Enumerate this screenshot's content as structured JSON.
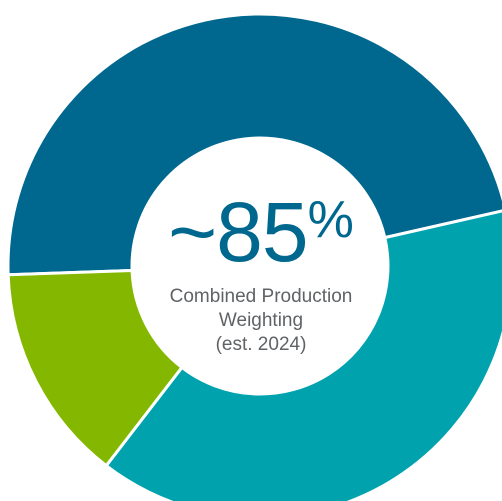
{
  "chart_data": {
    "type": "pie",
    "style": "donut",
    "title": "",
    "categories": [
      "",
      "",
      ""
    ],
    "series": [
      {
        "values": [
          47,
          39,
          14
        ]
      }
    ],
    "slice_colors": [
      "#00688f",
      "#00a2ad",
      "#84b800"
    ],
    "legend": "none",
    "center_value": "~85",
    "center_unit": "%",
    "center_caption_lines": [
      "Combined Production",
      "Weighting",
      "(est. 2024)"
    ]
  }
}
